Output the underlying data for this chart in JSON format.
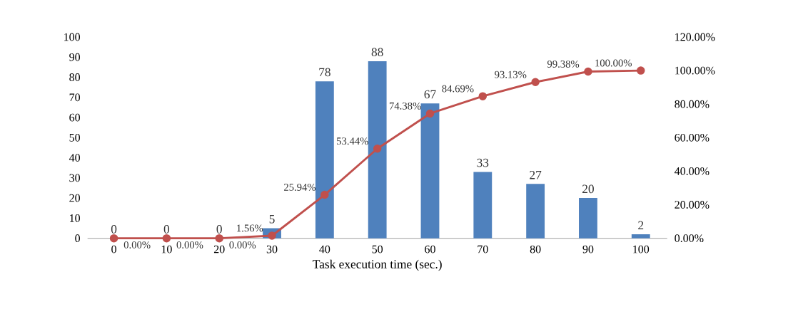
{
  "chart_data": {
    "type": "bar",
    "xlabel": "Task execution time (sec.)",
    "categories": [
      "0",
      "10",
      "20",
      "30",
      "40",
      "50",
      "60",
      "70",
      "80",
      "90",
      "100"
    ],
    "series": [
      {
        "color": "#4f81bd",
        "values": [
          0,
          0,
          0,
          5,
          78,
          88,
          67,
          33,
          27,
          20,
          2
        ],
        "value_labels": [
          "0",
          "0",
          "0",
          "5",
          "78",
          "88",
          "67",
          "33",
          "27",
          "20",
          "2"
        ]
      },
      {
        "type": "line",
        "axis": "y2",
        "color": "#c0504d",
        "values": [
          0,
          0,
          0,
          1.56,
          25.94,
          53.44,
          74.38,
          84.69,
          93.13,
          99.38,
          100
        ],
        "value_labels": [
          "0.00%",
          "0.00%",
          "0.00%",
          "1.56%",
          "25.94%",
          "53.44%",
          "74.38%",
          "84.69%",
          "93.13%",
          "99.38%",
          "100.00%"
        ]
      }
    ],
    "ylim": [
      0,
      100
    ],
    "yticks": [
      0,
      10,
      20,
      30,
      40,
      50,
      60,
      70,
      80,
      90,
      100
    ],
    "y2lim": [
      0,
      120
    ],
    "y2ticks": [
      {
        "value": 0,
        "label": "0.00%"
      },
      {
        "value": 20,
        "label": "20.00%"
      },
      {
        "value": 40,
        "label": "40.00%"
      },
      {
        "value": 60,
        "label": "60.00%"
      },
      {
        "value": 80,
        "label": "80.00%"
      },
      {
        "value": 100,
        "label": "100.00%"
      },
      {
        "value": 120,
        "label": "120.00%"
      }
    ],
    "marker": "circle",
    "line_style": "solid"
  }
}
